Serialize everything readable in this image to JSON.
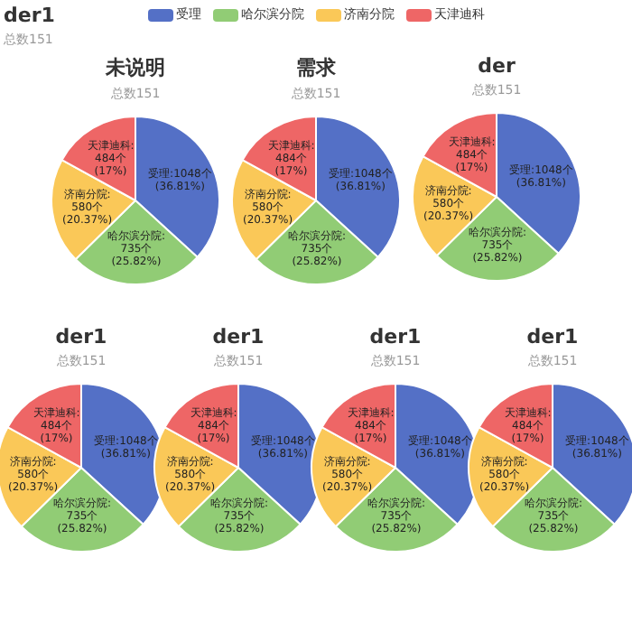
{
  "chart_data": [
    {
      "type": "pie",
      "title": "未说明",
      "subtitle": "总数151",
      "categories": [
        "受理",
        "哈尔滨分院",
        "济南分院",
        "天津迪科"
      ],
      "values": [
        1048,
        735,
        580,
        484
      ],
      "colors": [
        "#5470c6",
        "#91cc75",
        "#fac858",
        "#ee6666"
      ],
      "legend": "top",
      "annotations": [
        "der1",
        "总数151"
      ],
      "value_labels": [
        "受理:1048个\n(36.81%)",
        "哈尔滨分院:735个\n(25.82%)",
        "济南分院:580个\n(20.37%)",
        "天津迪科:484个\n(17%)"
      ]
    },
    {
      "type": "pie",
      "title": "需求",
      "subtitle": "总数151",
      "categories": [
        null,
        null,
        null,
        null
      ],
      "values": [
        1048,
        735,
        580,
        484
      ],
      "colors": [
        "#5470c6",
        "#91cc75",
        "#fac858",
        "#ee6666"
      ],
      "value_labels": [
        "受理:1048个\n(36.81%)",
        "哈尔滨分院:735个\n(25.82%)",
        "济南分院:580个\n(20.37%)",
        "天津迪科:484个\n(17%)"
      ]
    },
    {
      "type": "pie",
      "title": "der",
      "subtitle": "总数151",
      "categories": [
        null,
        null,
        null,
        null
      ],
      "values": [
        1048,
        735,
        580,
        484
      ],
      "colors": [
        "#5470c6",
        "#91cc75",
        "#fac858",
        "#ee6666"
      ],
      "value_labels": [
        "受理:1048个\n(36.81%)",
        "哈尔滨分院:735个\n(25.82%)",
        "济南分院:580个\n(20.37%)",
        "天津迪科:484个\n(17%)"
      ]
    },
    {
      "type": "pie",
      "title": "der1",
      "subtitle": "总数151",
      "categories": [
        null,
        null,
        null,
        null
      ],
      "values": [
        1048,
        735,
        580,
        484
      ],
      "colors": [
        "#5470c6",
        "#91cc75",
        "#fac858",
        "#ee6666"
      ],
      "value_labels": [
        "受理:1048个\n(36.81%)",
        "哈尔滨分院:735个\n(25.82%)",
        "济南分院:580个\n(20.37%)",
        "天津迪科:484个\n(17%)"
      ]
    },
    {
      "type": "pie",
      "title": "der1",
      "subtitle": "总数151",
      "categories": [
        null,
        null,
        null,
        null
      ],
      "values": [
        1048,
        735,
        580,
        484
      ],
      "colors": [
        "#5470c6",
        "#91cc75",
        "#fac858",
        "#ee6666"
      ],
      "value_labels": [
        "受理:1048个\n(36.81%)",
        "哈尔滨分院:735个\n(25.82%)",
        "济南分院:580个\n(20.37%)",
        "天津迪科:484个\n(17%)"
      ]
    },
    {
      "type": "pie",
      "title": "der1",
      "subtitle": "总数151",
      "categories": [
        null,
        null,
        null,
        null
      ],
      "values": [
        1048,
        735,
        580,
        484
      ],
      "colors": [
        "#5470c6",
        "#91cc75",
        "#fac858",
        "#ee6666"
      ],
      "value_labels": [
        "受理:1048个\n(36.81%)",
        "哈尔滨分院:735个\n(25.82%)",
        "济南分院:580个\n(20.37%)",
        "天津迪科:484个\n(17%)"
      ]
    },
    {
      "type": "pie",
      "title": "der1",
      "subtitle": "总数151",
      "categories": [
        null,
        null,
        null,
        null
      ],
      "values": [
        1048,
        735,
        580,
        484
      ],
      "colors": [
        "#5470c6",
        "#91cc75",
        "#fac858",
        "#ee6666"
      ],
      "value_labels": [
        "受理:1048个\n(36.81%)",
        "哈尔滨分院:735个\n(25.82%)",
        "济南分院:580个\n(20.37%)",
        "天津迪科:484个\n(17%)"
      ]
    }
  ]
}
